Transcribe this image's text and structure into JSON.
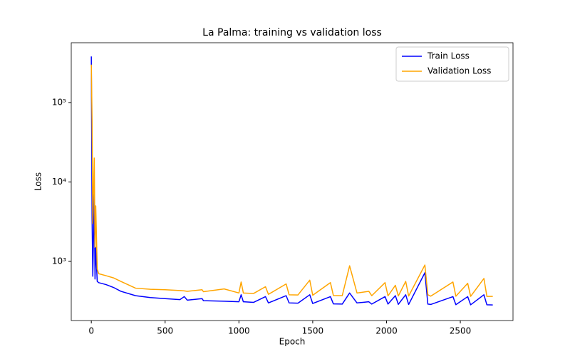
{
  "chart_data": {
    "type": "line",
    "title": "La Palma: training vs validation loss",
    "x_label": "Epoch",
    "y_label": "Loss",
    "log_y": true,
    "legend": "upper right",
    "xlim": [
      -136,
      2857
    ],
    "xticks": [
      0,
      500,
      1000,
      1500,
      2000,
      2500
    ],
    "ylim": [
      180,
      566000
    ],
    "yticks": [
      {
        "value": 1000,
        "label": "10³"
      },
      {
        "value": 10000,
        "label": "10⁴"
      },
      {
        "value": 100000,
        "label": "10⁵"
      }
    ],
    "x": [
      0,
      5,
      10,
      20,
      25,
      30,
      40,
      50,
      100,
      150,
      200,
      300,
      400,
      500,
      600,
      630,
      650,
      750,
      760,
      900,
      1000,
      1015,
      1030,
      1100,
      1180,
      1200,
      1320,
      1340,
      1400,
      1480,
      1500,
      1620,
      1640,
      1700,
      1750,
      1800,
      1880,
      1900,
      1990,
      2010,
      2060,
      2080,
      2130,
      2150,
      2260,
      2280,
      2300,
      2450,
      2470,
      2550,
      2570,
      2660,
      2680,
      2720
    ],
    "series": [
      {
        "name": "Train Loss",
        "color": "#0000ff",
        "values": [
          380000,
          3500,
          650,
          7000,
          600,
          1500,
          560,
          540,
          510,
          470,
          420,
          370,
          350,
          340,
          330,
          360,
          325,
          340,
          320,
          315,
          310,
          380,
          310,
          305,
          360,
          300,
          370,
          300,
          298,
          380,
          295,
          360,
          292,
          290,
          400,
          300,
          310,
          290,
          360,
          290,
          370,
          288,
          380,
          287,
          720,
          290,
          287,
          360,
          285,
          360,
          284,
          380,
          284,
          283
        ]
      },
      {
        "name": "Validation Loss",
        "color": "#ffa500",
        "values": [
          300000,
          60000,
          3000,
          20000,
          1500,
          5000,
          800,
          700,
          660,
          620,
          560,
          460,
          445,
          440,
          430,
          425,
          420,
          440,
          415,
          450,
          400,
          550,
          400,
          395,
          480,
          385,
          520,
          380,
          378,
          580,
          375,
          540,
          372,
          370,
          880,
          400,
          420,
          370,
          540,
          368,
          500,
          367,
          560,
          366,
          900,
          380,
          365,
          550,
          364,
          530,
          363,
          610,
          362,
          362
        ]
      }
    ]
  }
}
